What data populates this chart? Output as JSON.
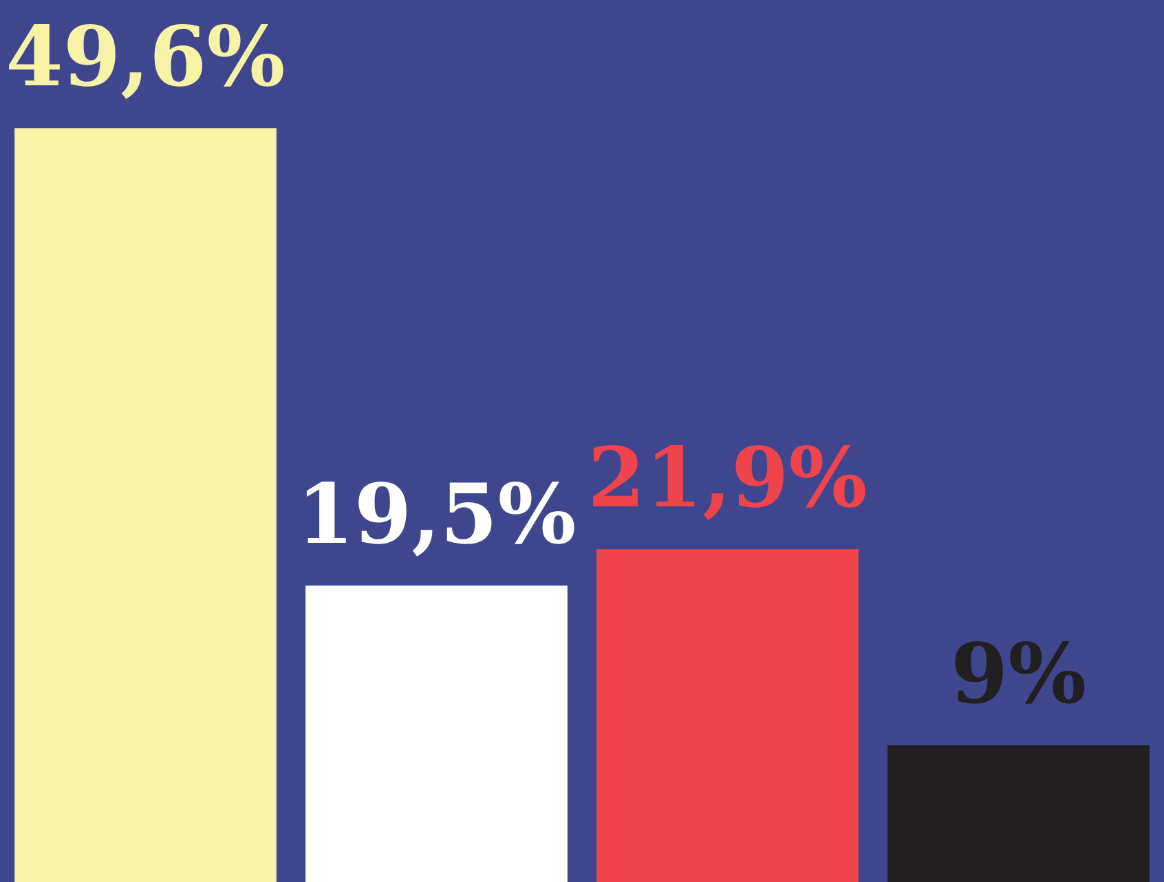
{
  "chart_data": {
    "type": "bar",
    "categories": [
      null,
      null,
      null,
      null
    ],
    "values": [
      49.6,
      19.5,
      21.9,
      9
    ],
    "colors": [
      "#f6f3a6",
      "#ffffff",
      "#ef444c",
      "#221f20"
    ],
    "value_labels": [
      "49,6%",
      "19,5%",
      "21,9%",
      "9%"
    ]
  }
}
